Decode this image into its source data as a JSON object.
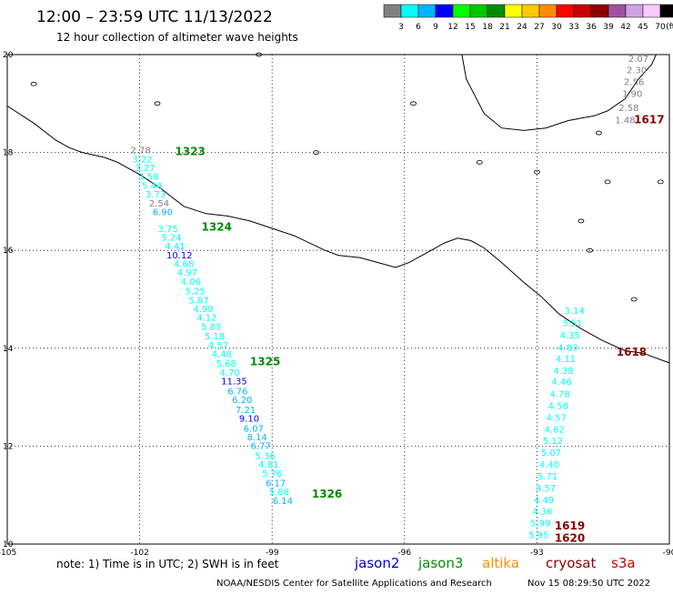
{
  "header": {
    "title": "12:00 – 23:59 UTC 11/13/2022",
    "subtitle": "12 hour collection of altimeter wave heights"
  },
  "colorbar": {
    "colors": [
      "#808080",
      "#00ffff",
      "#00b4ff",
      "#0000ff",
      "#00ff00",
      "#00c800",
      "#008c00",
      "#ffff00",
      "#ffc800",
      "#ff8c00",
      "#ff0000",
      "#c80000",
      "#8c0000",
      "#a050a0",
      "#d2a0e6",
      "#ffc8ff",
      "#000000"
    ],
    "labels": [
      "3",
      "6",
      "9",
      "12",
      "15",
      "18",
      "21",
      "24",
      "27",
      "30",
      "33",
      "36",
      "39",
      "42",
      "45",
      "70"
    ],
    "unit": "(ft)"
  },
  "map": {
    "lon_range": [
      -105,
      -90
    ],
    "lat_range": [
      10,
      20
    ],
    "x_ticks": [
      {
        "v": -105,
        "label": "-105"
      },
      {
        "v": -102,
        "label": "-102"
      },
      {
        "v": -99,
        "label": "-99"
      },
      {
        "v": -96,
        "label": "-96"
      },
      {
        "v": -93,
        "label": "-93"
      },
      {
        "v": -90,
        "label": "-90"
      }
    ],
    "y_ticks": [
      {
        "v": 20,
        "label": "20"
      },
      {
        "v": 18,
        "label": "18"
      },
      {
        "v": 16,
        "label": "16"
      },
      {
        "v": 14,
        "label": "14"
      },
      {
        "v": 12,
        "label": "12"
      },
      {
        "v": 10,
        "label": "10"
      }
    ],
    "coastline": [
      [
        -105,
        18.95
      ],
      [
        -104.4,
        18.6
      ],
      [
        -103.9,
        18.25
      ],
      [
        -103.6,
        18.1
      ],
      [
        -103.3,
        18.0
      ],
      [
        -102.8,
        17.9
      ],
      [
        -102.5,
        17.8
      ],
      [
        -102.0,
        17.55
      ],
      [
        -101.5,
        17.25
      ],
      [
        -101.0,
        16.9
      ],
      [
        -100.5,
        16.75
      ],
      [
        -100.0,
        16.7
      ],
      [
        -99.5,
        16.6
      ],
      [
        -99.0,
        16.45
      ],
      [
        -98.5,
        16.3
      ],
      [
        -97.8,
        16.0
      ],
      [
        -97.5,
        15.9
      ],
      [
        -97.0,
        15.85
      ],
      [
        -96.6,
        15.75
      ],
      [
        -96.2,
        15.65
      ],
      [
        -95.9,
        15.75
      ],
      [
        -95.5,
        15.95
      ],
      [
        -95.1,
        16.15
      ],
      [
        -94.8,
        16.25
      ],
      [
        -94.5,
        16.2
      ],
      [
        -94.2,
        16.05
      ],
      [
        -93.8,
        15.75
      ],
      [
        -93.3,
        15.35
      ],
      [
        -92.9,
        15.05
      ],
      [
        -92.5,
        14.7
      ],
      [
        -92.0,
        14.4
      ],
      [
        -91.5,
        14.15
      ],
      [
        -91.0,
        13.95
      ],
      [
        -90.6,
        13.9
      ],
      [
        -90.0,
        13.7
      ]
    ],
    "gulf_coast": [
      [
        -94.7,
        20.0
      ],
      [
        -94.6,
        19.5
      ],
      [
        -94.2,
        18.8
      ],
      [
        -93.8,
        18.5
      ],
      [
        -93.3,
        18.45
      ],
      [
        -92.8,
        18.5
      ],
      [
        -92.3,
        18.65
      ],
      [
        -92.0,
        18.7
      ],
      [
        -91.7,
        18.75
      ],
      [
        -91.4,
        18.85
      ],
      [
        -91.0,
        19.1
      ],
      [
        -90.7,
        19.5
      ],
      [
        -90.4,
        19.8
      ],
      [
        -90.3,
        20.0
      ]
    ],
    "islands": [
      [
        -104.4,
        19.4
      ],
      [
        -101.6,
        19.0
      ],
      [
        -99.3,
        20.0
      ],
      [
        -98.0,
        18.0
      ],
      [
        -95.8,
        19.0
      ],
      [
        -94.3,
        17.8
      ],
      [
        -93.0,
        17.6
      ],
      [
        -91.4,
        17.4
      ],
      [
        -92.0,
        16.6
      ],
      [
        -91.8,
        16.0
      ],
      [
        -90.8,
        15.0
      ],
      [
        -90.2,
        17.4
      ],
      [
        -91.6,
        18.4
      ]
    ],
    "passes": [
      {
        "sat": "jason3",
        "label": "1323",
        "label_pos": [
          -101.2,
          17.95
        ],
        "points": [
          {
            "lon": -101.98,
            "lat": 17.98,
            "v": "2.78"
          },
          {
            "lon": -101.94,
            "lat": 17.8,
            "v": "3.22"
          },
          {
            "lon": -101.88,
            "lat": 17.62,
            "v": "3.27"
          },
          {
            "lon": -101.8,
            "lat": 17.44,
            "v": "3.58"
          },
          {
            "lon": -101.72,
            "lat": 17.26,
            "v": "5.44"
          },
          {
            "lon": -101.64,
            "lat": 17.08,
            "v": "3.73"
          },
          {
            "lon": -101.56,
            "lat": 16.9,
            "v": "2.54"
          },
          {
            "lon": -101.48,
            "lat": 16.72,
            "v": "6.90"
          },
          {
            "lon": -101.36,
            "lat": 16.38,
            "v": "3.75"
          },
          {
            "lon": -101.28,
            "lat": 16.2,
            "v": "5.24"
          },
          {
            "lon": -101.2,
            "lat": 16.02,
            "v": "4.41"
          },
          {
            "lon": -101.1,
            "lat": 15.84,
            "v": "10.12"
          },
          {
            "lon": -101.0,
            "lat": 15.66,
            "v": "4.68"
          },
          {
            "lon": -100.92,
            "lat": 15.48,
            "v": "4.97"
          },
          {
            "lon": -100.84,
            "lat": 15.3,
            "v": "4.06"
          },
          {
            "lon": -100.74,
            "lat": 15.1,
            "v": "5.25"
          },
          {
            "lon": -100.66,
            "lat": 14.92,
            "v": "5.87"
          },
          {
            "lon": -100.56,
            "lat": 14.74,
            "v": "4.99"
          },
          {
            "lon": -100.48,
            "lat": 14.56,
            "v": "4.12"
          },
          {
            "lon": -100.38,
            "lat": 14.38,
            "v": "5.83"
          },
          {
            "lon": -100.3,
            "lat": 14.18,
            "v": "5.18"
          },
          {
            "lon": -100.22,
            "lat": 14.0,
            "v": "4.57"
          },
          {
            "lon": -100.14,
            "lat": 13.82,
            "v": "4.48"
          },
          {
            "lon": -100.04,
            "lat": 13.62,
            "v": "5.68"
          },
          {
            "lon": -99.96,
            "lat": 13.44,
            "v": "4.70"
          },
          {
            "lon": -99.86,
            "lat": 13.26,
            "v": "11.35"
          },
          {
            "lon": -99.78,
            "lat": 13.06,
            "v": "6.76"
          },
          {
            "lon": -99.68,
            "lat": 12.88,
            "v": "6.20"
          },
          {
            "lon": -99.6,
            "lat": 12.68,
            "v": "7.21"
          },
          {
            "lon": -99.52,
            "lat": 12.5,
            "v": "9.10"
          },
          {
            "lon": -99.42,
            "lat": 12.3,
            "v": "6.07"
          },
          {
            "lon": -99.34,
            "lat": 12.12,
            "v": "8.14"
          },
          {
            "lon": -99.26,
            "lat": 11.94,
            "v": "6.77"
          },
          {
            "lon": -99.16,
            "lat": 11.74,
            "v": "5.36"
          },
          {
            "lon": -99.08,
            "lat": 11.56,
            "v": "4.81"
          },
          {
            "lon": -99.0,
            "lat": 11.38,
            "v": "5.76"
          },
          {
            "lon": -98.92,
            "lat": 11.18,
            "v": "6.17"
          },
          {
            "lon": -98.84,
            "lat": 11.0,
            "v": "5.88"
          },
          {
            "lon": -98.76,
            "lat": 10.82,
            "v": "6.14"
          }
        ]
      },
      {
        "sat": "jason3",
        "label": "1324",
        "label_pos": [
          -100.6,
          16.4
        ],
        "points": []
      },
      {
        "sat": "jason3",
        "label": "1325",
        "label_pos": [
          -99.5,
          13.65
        ],
        "points": []
      },
      {
        "sat": "jason3",
        "label": "1326",
        "label_pos": [
          -98.1,
          10.95
        ],
        "points": []
      },
      {
        "sat": "cryosat",
        "label": "1617",
        "label_pos": [
          -90.8,
          18.6
        ],
        "points": [
          {
            "lon": -90.7,
            "lat": 19.85,
            "v": "2.07"
          },
          {
            "lon": -90.74,
            "lat": 19.62,
            "v": "2.30"
          },
          {
            "lon": -90.8,
            "lat": 19.38,
            "v": "2.56"
          },
          {
            "lon": -90.84,
            "lat": 19.14,
            "v": "1.90"
          },
          {
            "lon": -90.92,
            "lat": 18.85,
            "v": "2.58"
          },
          {
            "lon": -91.0,
            "lat": 18.6,
            "v": "1.48"
          }
        ]
      },
      {
        "sat": "cryosat",
        "label": "1618",
        "label_pos": [
          -91.2,
          13.85
        ],
        "points": [
          {
            "lon": -92.15,
            "lat": 14.7,
            "v": "3.14"
          },
          {
            "lon": -92.2,
            "lat": 14.45,
            "v": "3.51"
          },
          {
            "lon": -92.25,
            "lat": 14.2,
            "v": "4.35"
          },
          {
            "lon": -92.3,
            "lat": 13.95,
            "v": "4.83"
          },
          {
            "lon": -92.35,
            "lat": 13.72,
            "v": "4.11"
          },
          {
            "lon": -92.4,
            "lat": 13.48,
            "v": "4.38"
          },
          {
            "lon": -92.44,
            "lat": 13.25,
            "v": "4.46"
          },
          {
            "lon": -92.48,
            "lat": 13.0,
            "v": "4.78"
          },
          {
            "lon": -92.52,
            "lat": 12.76,
            "v": "4.58"
          },
          {
            "lon": -92.56,
            "lat": 12.52,
            "v": "4.57"
          },
          {
            "lon": -92.6,
            "lat": 12.28,
            "v": "4.62"
          },
          {
            "lon": -92.64,
            "lat": 12.04,
            "v": "5.12"
          },
          {
            "lon": -92.68,
            "lat": 11.8,
            "v": "5.07"
          },
          {
            "lon": -92.72,
            "lat": 11.56,
            "v": "4.40"
          },
          {
            "lon": -92.76,
            "lat": 11.32,
            "v": "5.71"
          },
          {
            "lon": -92.8,
            "lat": 11.08,
            "v": "4.57"
          },
          {
            "lon": -92.84,
            "lat": 10.84,
            "v": "4.49"
          },
          {
            "lon": -92.88,
            "lat": 10.6,
            "v": "4.36"
          },
          {
            "lon": -92.92,
            "lat": 10.36,
            "v": "5.99"
          },
          {
            "lon": -92.96,
            "lat": 10.12,
            "v": "5.95"
          }
        ]
      },
      {
        "sat": "cryosat",
        "label": "1619",
        "label_pos": [
          -92.6,
          10.3
        ],
        "points": []
      },
      {
        "sat": "cryosat",
        "label": "1620",
        "label_pos": [
          -92.6,
          10.05
        ],
        "points": []
      }
    ]
  },
  "sat_colors": {
    "jason2": "#0000cc",
    "jason3": "#008c00",
    "altika": "#ff8c00",
    "cryosat": "#8c0000",
    "s3a": "#c80000"
  },
  "legend": {
    "note": "note:  1) Time is in UTC;  2) SWH is in feet",
    "sats": [
      {
        "key": "jason2",
        "label": "jason2"
      },
      {
        "key": "jason3",
        "label": "jason3"
      },
      {
        "key": "altika",
        "label": "altika"
      },
      {
        "key": "cryosat",
        "label": "cryosat"
      },
      {
        "key": "s3a",
        "label": "s3a"
      }
    ]
  },
  "footer": {
    "credit": "NOAA/NESDIS Center for Satellite Applications and Research",
    "timestamp": "Nov 15 08:29:50 UTC 2022"
  }
}
